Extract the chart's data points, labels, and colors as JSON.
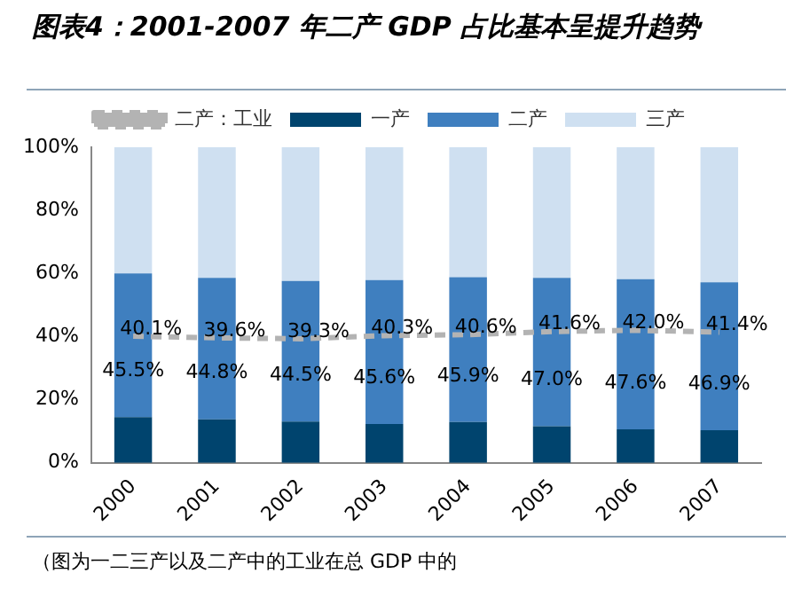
{
  "chart_data": {
    "type": "bar",
    "title": "图表4：2001-2007 年二产 GDP 占比基本呈提升趋势",
    "categories": [
      "2000",
      "2001",
      "2002",
      "2003",
      "2004",
      "2005",
      "2006",
      "2007"
    ],
    "stacked": true,
    "series": [
      {
        "name": "一产",
        "color": "#00446e",
        "values": [
          14.5,
          13.8,
          13.1,
          12.3,
          12.9,
          11.6,
          10.6,
          10.3
        ]
      },
      {
        "name": "二产",
        "color": "#3f7fbf",
        "values": [
          45.5,
          44.8,
          44.5,
          45.6,
          45.9,
          47.0,
          47.6,
          46.9
        ],
        "value_labels": [
          "45.5%",
          "44.8%",
          "44.5%",
          "45.6%",
          "45.9%",
          "47.0%",
          "47.6%",
          "46.9%"
        ]
      },
      {
        "name": "三产",
        "color": "#cfe0f1",
        "values": [
          40.0,
          41.4,
          42.4,
          42.1,
          41.2,
          41.4,
          41.8,
          42.8
        ]
      },
      {
        "name": "二产：工业",
        "type": "line",
        "color": "#b3b3b3",
        "line_style": "dashed",
        "marker": "none",
        "values": [
          40.1,
          39.6,
          39.3,
          40.3,
          40.6,
          41.6,
          42.0,
          41.4
        ],
        "value_labels": [
          "40.1%",
          "39.6%",
          "39.3%",
          "40.3%",
          "40.6%",
          "41.6%",
          "42.0%",
          "41.4%"
        ]
      }
    ],
    "ylim": [
      0,
      100
    ],
    "yticks": [
      {
        "value": 0,
        "label": "0%"
      },
      {
        "value": 20,
        "label": "20%"
      },
      {
        "value": 40,
        "label": "40%"
      },
      {
        "value": 60,
        "label": "60%"
      },
      {
        "value": 80,
        "label": "80%"
      },
      {
        "value": 100,
        "label": "100%"
      }
    ],
    "grid": false,
    "legend": "top",
    "annotations": [
      "（图为一二三产以及二产中的工业在总 GDP 中的"
    ]
  }
}
